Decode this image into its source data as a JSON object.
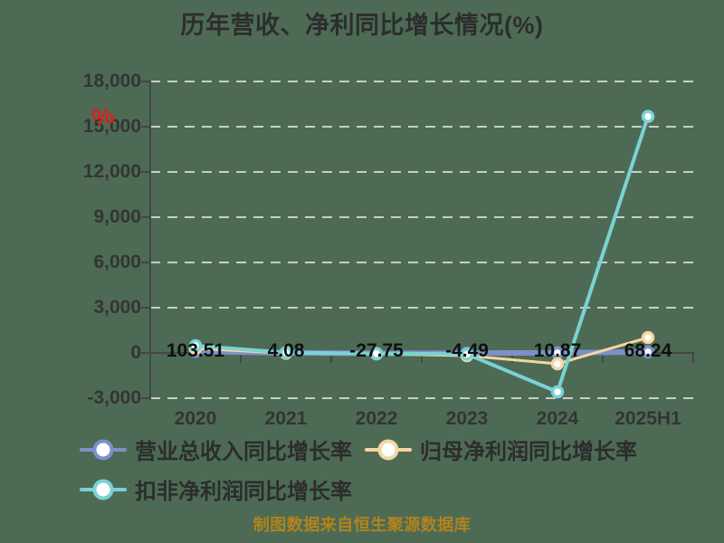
{
  "title": "历年营收、净利同比增长情况(%)",
  "footer": "制图数据来自恒生聚源数据库",
  "watermark": "%",
  "colors": {
    "background": "#4d6b54",
    "gridline": "#d3d6d1",
    "axis": "#454545",
    "title_text": "#2d2d2d",
    "tick_text": "#343434",
    "data_label_text": "#0f0f0f",
    "legend_text": "#2c2c2c",
    "footer_text": "#b1831d",
    "watermark_red": "#e11d1d",
    "series_blue": "#7c91c9",
    "series_orange": "#f5d7a0",
    "series_teal": "#7bd2d5",
    "marker_fill": "#ffffff"
  },
  "chart_data": {
    "type": "line",
    "title": "历年营收、净利同比增长情况(%)",
    "categories": [
      "2020",
      "2021",
      "2022",
      "2023",
      "2024",
      "2025H1"
    ],
    "series": [
      {
        "name": "营业总收入同比增长率",
        "color": "#7c91c9",
        "line_width": 6,
        "values": [
          103.51,
          4.08,
          -27.75,
          -4.49,
          10.87,
          68.24
        ],
        "labeled": true
      },
      {
        "name": "归母净利润同比增长率",
        "color": "#f5d7a0",
        "line_width": 3,
        "values": [
          300,
          -20,
          -60,
          -180,
          -720,
          1020
        ],
        "labeled": false
      },
      {
        "name": "扣非净利润同比增长率",
        "color": "#7bd2d5",
        "line_width": 4,
        "values": [
          480,
          20,
          -40,
          -80,
          -2580,
          15680
        ],
        "labeled": false
      }
    ],
    "point_labels": [
      "103.51",
      "4.08",
      "-27.75",
      "-4.49",
      "10.87",
      "68.24"
    ],
    "y_axis": {
      "tick_labels": [
        "18,000",
        "15,000",
        "12,000",
        "9,000",
        "6,000",
        "3,000",
        "0",
        "-3,000"
      ],
      "tick_values": [
        18000,
        15000,
        12000,
        9000,
        6000,
        3000,
        0,
        -3000
      ]
    },
    "ylim": [
      -3000,
      18000
    ],
    "grid": "horizontal-dashed",
    "legend_position": "bottom-left-two-rows"
  },
  "legend": {
    "items": [
      {
        "label": "营业总收入同比增长率",
        "row": 1
      },
      {
        "label": "归母净利润同比增长率",
        "row": 1
      },
      {
        "label": "扣非净利润同比增长率",
        "row": 2
      }
    ]
  }
}
